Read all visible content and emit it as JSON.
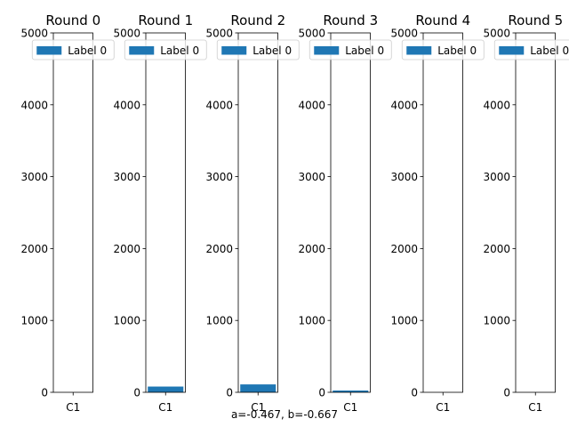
{
  "chart_data": {
    "type": "bar",
    "caption": "a=-0.467, b=-0.667",
    "series_color": "#1f77b4",
    "ylim": [
      0,
      5000
    ],
    "yticks": [
      0,
      1000,
      2000,
      3000,
      4000,
      5000
    ],
    "legend_placement": "top-center",
    "panels": [
      {
        "title": "Round 0",
        "categories": [
          "C1"
        ],
        "series": [
          {
            "name": "Label 0",
            "values": [
              0
            ]
          }
        ]
      },
      {
        "title": "Round 1",
        "categories": [
          "C1"
        ],
        "series": [
          {
            "name": "Label 0",
            "values": [
              80
            ]
          }
        ]
      },
      {
        "title": "Round 2",
        "categories": [
          "C1"
        ],
        "series": [
          {
            "name": "Label 0",
            "values": [
              110
            ]
          }
        ]
      },
      {
        "title": "Round 3",
        "categories": [
          "C1"
        ],
        "series": [
          {
            "name": "Label 0",
            "values": [
              25
            ]
          }
        ]
      },
      {
        "title": "Round 4",
        "categories": [
          "C1"
        ],
        "series": [
          {
            "name": "Label 0",
            "values": [
              0
            ]
          }
        ]
      },
      {
        "title": "Round 5",
        "categories": [
          "C1"
        ],
        "series": [
          {
            "name": "Label 0",
            "values": [
              0
            ]
          }
        ]
      }
    ]
  }
}
